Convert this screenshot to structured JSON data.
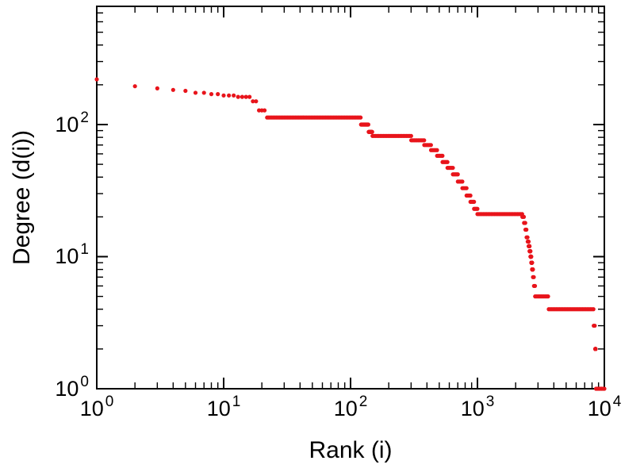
{
  "page": {
    "background": "#ffffff"
  },
  "chart_data": {
    "type": "scatter",
    "scale": "log-log",
    "title": "",
    "xlabel": "Rank (i)",
    "ylabel": "Degree (d(i))",
    "xlim": [
      1,
      10000
    ],
    "ylim": [
      1,
      785
    ],
    "x_tick_exponents": [
      0,
      1,
      2,
      3,
      4
    ],
    "y_tick_exponents": [
      0,
      1,
      2
    ],
    "grid": false,
    "legend": null,
    "marker": {
      "shape": "dot",
      "color": "#e8141b",
      "size": 5
    },
    "series": [
      {
        "name": "degree-vs-rank",
        "steps_format": [
          "rank_start",
          "rank_end",
          "degree"
        ],
        "steps": [
          [
            1,
            1,
            220
          ],
          [
            2,
            2,
            195
          ],
          [
            3,
            3,
            188
          ],
          [
            4,
            4,
            183
          ],
          [
            5,
            5,
            180
          ],
          [
            6,
            7,
            174
          ],
          [
            8,
            9,
            170
          ],
          [
            10,
            12,
            166
          ],
          [
            13,
            16,
            162
          ],
          [
            17,
            18,
            150
          ],
          [
            19,
            21,
            128
          ],
          [
            22,
            120,
            113
          ],
          [
            121,
            138,
            100
          ],
          [
            139,
            148,
            88
          ],
          [
            149,
            300,
            82
          ],
          [
            301,
            380,
            76
          ],
          [
            381,
            430,
            70
          ],
          [
            431,
            480,
            64
          ],
          [
            481,
            530,
            58
          ],
          [
            531,
            580,
            52
          ],
          [
            581,
            640,
            47
          ],
          [
            641,
            700,
            42
          ],
          [
            701,
            760,
            37
          ],
          [
            761,
            820,
            33
          ],
          [
            821,
            880,
            29
          ],
          [
            881,
            940,
            26
          ],
          [
            941,
            999,
            23
          ],
          [
            1000,
            2250,
            21
          ],
          [
            2260,
            2320,
            20
          ],
          [
            2330,
            2380,
            18
          ],
          [
            2390,
            2430,
            16
          ],
          [
            2440,
            2480,
            14
          ],
          [
            2490,
            2530,
            13
          ],
          [
            2540,
            2570,
            12
          ],
          [
            2580,
            2610,
            11
          ],
          [
            2620,
            2650,
            10
          ],
          [
            2660,
            2690,
            9
          ],
          [
            2700,
            2730,
            8
          ],
          [
            2740,
            2780,
            7
          ],
          [
            2790,
            2840,
            6
          ],
          [
            2850,
            3600,
            5
          ],
          [
            3650,
            8200,
            4
          ],
          [
            8250,
            8400,
            3
          ],
          [
            8500,
            8520,
            2
          ],
          [
            8600,
            10000,
            1
          ]
        ]
      }
    ]
  }
}
